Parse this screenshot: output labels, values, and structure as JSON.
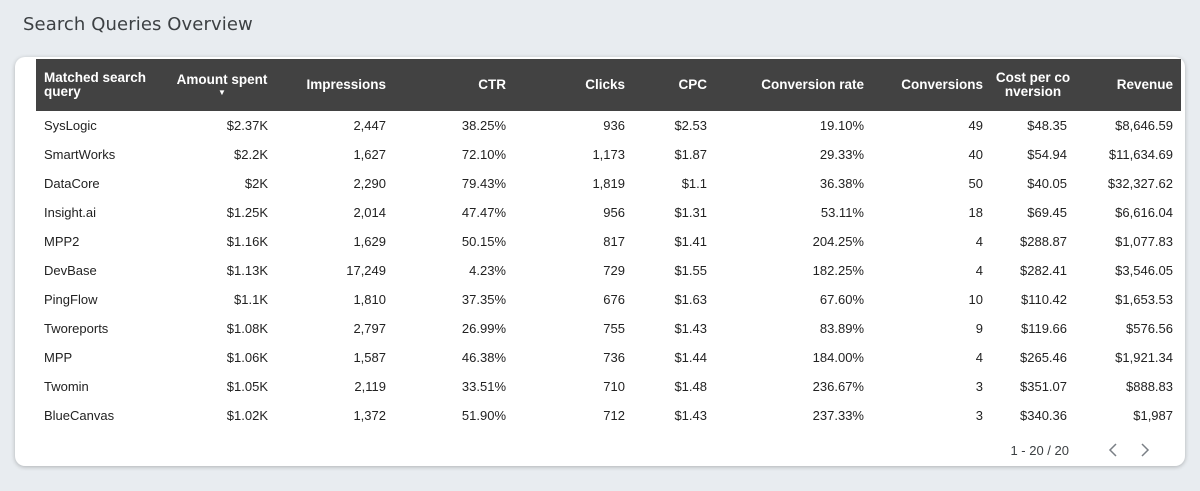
{
  "header": {
    "title": "Search Queries Overview"
  },
  "table": {
    "columns": [
      {
        "label": "Matched search query"
      },
      {
        "label": "Amount spent",
        "sort_indicator": "▼"
      },
      {
        "label": "Impressions"
      },
      {
        "label": "CTR"
      },
      {
        "label": "Clicks"
      },
      {
        "label": "CPC"
      },
      {
        "label": "Conversion rate"
      },
      {
        "label": "Conversions"
      },
      {
        "label": "Cost per conversion"
      },
      {
        "label": "Revenue"
      }
    ],
    "rows": [
      [
        "SysLogic",
        "$2.37K",
        "2,447",
        "38.25%",
        "936",
        "$2.53",
        "19.10%",
        "49",
        "$48.35",
        "$8,646.59"
      ],
      [
        "SmartWorks",
        "$2.2K",
        "1,627",
        "72.10%",
        "1,173",
        "$1.87",
        "29.33%",
        "40",
        "$54.94",
        "$11,634.69"
      ],
      [
        "DataCore",
        "$2K",
        "2,290",
        "79.43%",
        "1,819",
        "$1.1",
        "36.38%",
        "50",
        "$40.05",
        "$32,327.62"
      ],
      [
        "Insight.ai",
        "$1.25K",
        "2,014",
        "47.47%",
        "956",
        "$1.31",
        "53.11%",
        "18",
        "$69.45",
        "$6,616.04"
      ],
      [
        "MPP2",
        "$1.16K",
        "1,629",
        "50.15%",
        "817",
        "$1.41",
        "204.25%",
        "4",
        "$288.87",
        "$1,077.83"
      ],
      [
        "DevBase",
        "$1.13K",
        "17,249",
        "4.23%",
        "729",
        "$1.55",
        "182.25%",
        "4",
        "$282.41",
        "$3,546.05"
      ],
      [
        "PingFlow",
        "$1.1K",
        "1,810",
        "37.35%",
        "676",
        "$1.63",
        "67.60%",
        "10",
        "$110.42",
        "$1,653.53"
      ],
      [
        "Tworeports",
        "$1.08K",
        "2,797",
        "26.99%",
        "755",
        "$1.43",
        "83.89%",
        "9",
        "$119.66",
        "$576.56"
      ],
      [
        "MPP",
        "$1.06K",
        "1,587",
        "46.38%",
        "736",
        "$1.44",
        "184.00%",
        "4",
        "$265.46",
        "$1,921.34"
      ],
      [
        "Twomin",
        "$1.05K",
        "2,119",
        "33.51%",
        "710",
        "$1.48",
        "236.67%",
        "3",
        "$351.07",
        "$888.83"
      ],
      [
        "BlueCanvas",
        "$1.02K",
        "1,372",
        "51.90%",
        "712",
        "$1.43",
        "237.33%",
        "3",
        "$340.36",
        "$1,987"
      ]
    ]
  },
  "pagination": {
    "range": "1 - 20 / 20",
    "prev_icon": "chevron-left-icon",
    "next_icon": "chevron-right-icon"
  },
  "colors": {
    "background": "#e8ecf0",
    "header_bg": "#424242",
    "header_text": "#ffffff",
    "card_bg": "#ffffff"
  }
}
